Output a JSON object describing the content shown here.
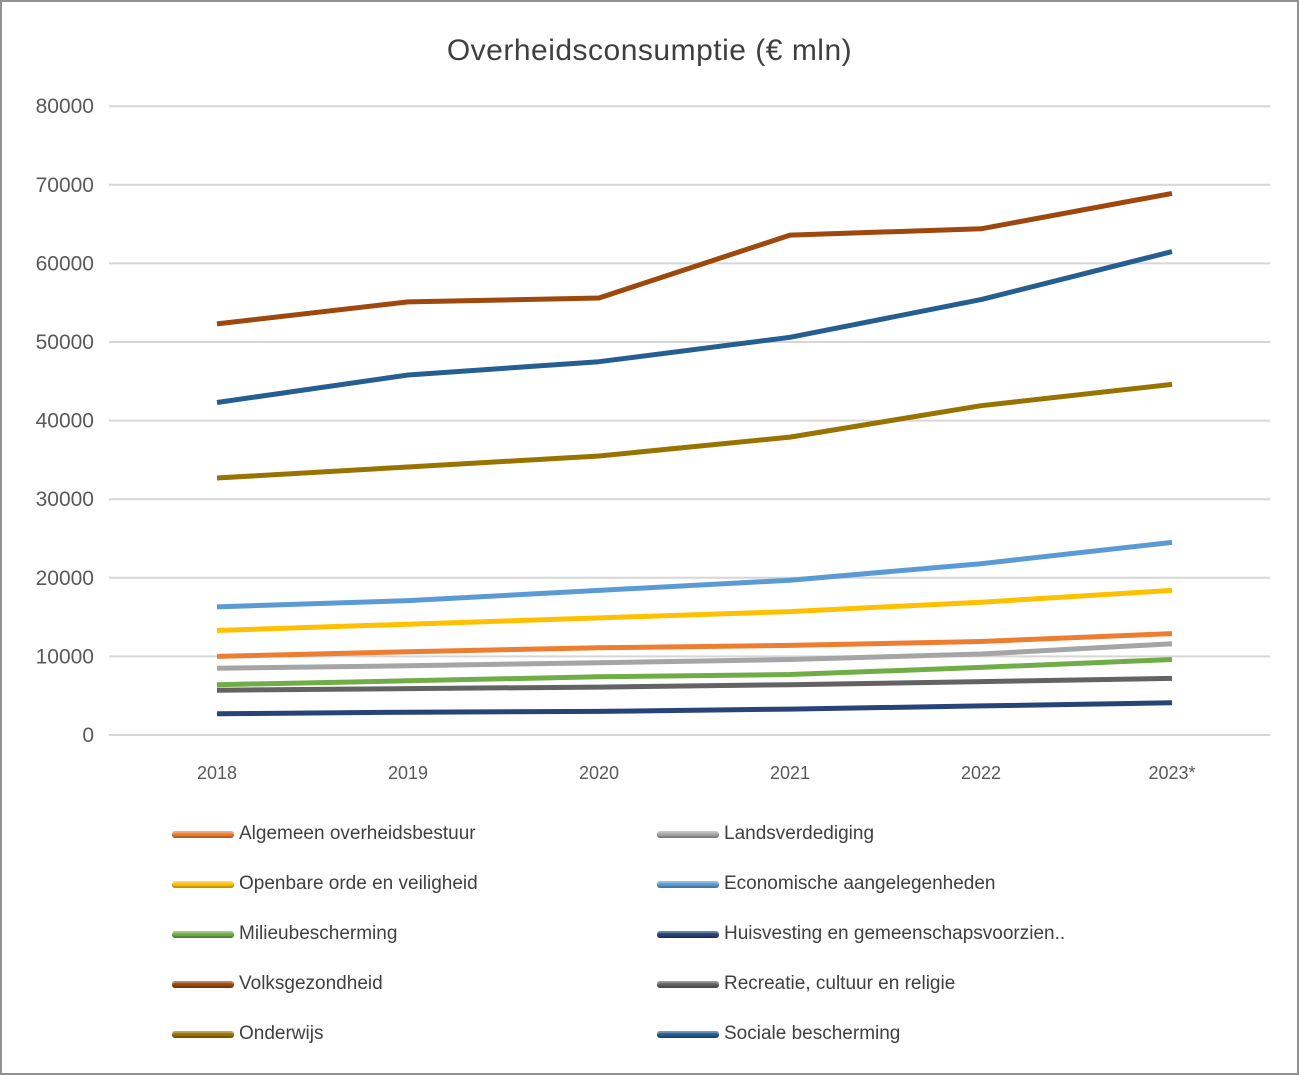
{
  "chart_data": {
    "type": "line",
    "title": "Overheidsconsumptie (€ mln)",
    "categories": [
      "2018",
      "2019",
      "2020",
      "2021",
      "2022",
      "2023*"
    ],
    "y_ticks": [
      0,
      10000,
      20000,
      30000,
      40000,
      50000,
      60000,
      70000,
      80000
    ],
    "ylim": [
      0,
      80000
    ],
    "grid": true,
    "gridline_color": "#d6d6d6",
    "axis_text_color": "#595959",
    "legend_position": "bottom-two-columns",
    "series": [
      {
        "name": "Algemeen overheidsbestuur",
        "color": "#ED7D31",
        "values": [
          10000,
          10600,
          11100,
          11400,
          11900,
          12900
        ]
      },
      {
        "name": "Landsverdediging",
        "color": "#A5A5A5",
        "values": [
          8500,
          8800,
          9200,
          9600,
          10300,
          11600
        ]
      },
      {
        "name": "Openbare orde en veiligheid",
        "color": "#FFC000",
        "values": [
          13300,
          14100,
          14900,
          15700,
          16900,
          18400
        ]
      },
      {
        "name": "Economische aangelegenheden",
        "color": "#5B9BD5",
        "values": [
          16300,
          17100,
          18400,
          19700,
          21800,
          24500
        ]
      },
      {
        "name": "Milieubescherming",
        "color": "#70AD47",
        "values": [
          6400,
          6900,
          7400,
          7700,
          8600,
          9600
        ]
      },
      {
        "name": "Huisvesting en gemeenschapsvoorzien..",
        "color": "#264478",
        "values": [
          2700,
          2900,
          3000,
          3300,
          3700,
          4100
        ]
      },
      {
        "name": "Volksgezondheid",
        "color": "#9E480E",
        "values": [
          52300,
          55100,
          55600,
          63600,
          64400,
          68900
        ]
      },
      {
        "name": "Recreatie, cultuur en religie",
        "color": "#636363",
        "values": [
          5700,
          5900,
          6100,
          6400,
          6800,
          7200
        ]
      },
      {
        "name": "Onderwijs",
        "color": "#997300",
        "values": [
          32700,
          34100,
          35500,
          37900,
          41900,
          44600
        ]
      },
      {
        "name": "Sociale bescherming",
        "color": "#255E91",
        "values": [
          42300,
          45800,
          47500,
          50600,
          55400,
          61500
        ]
      }
    ]
  }
}
